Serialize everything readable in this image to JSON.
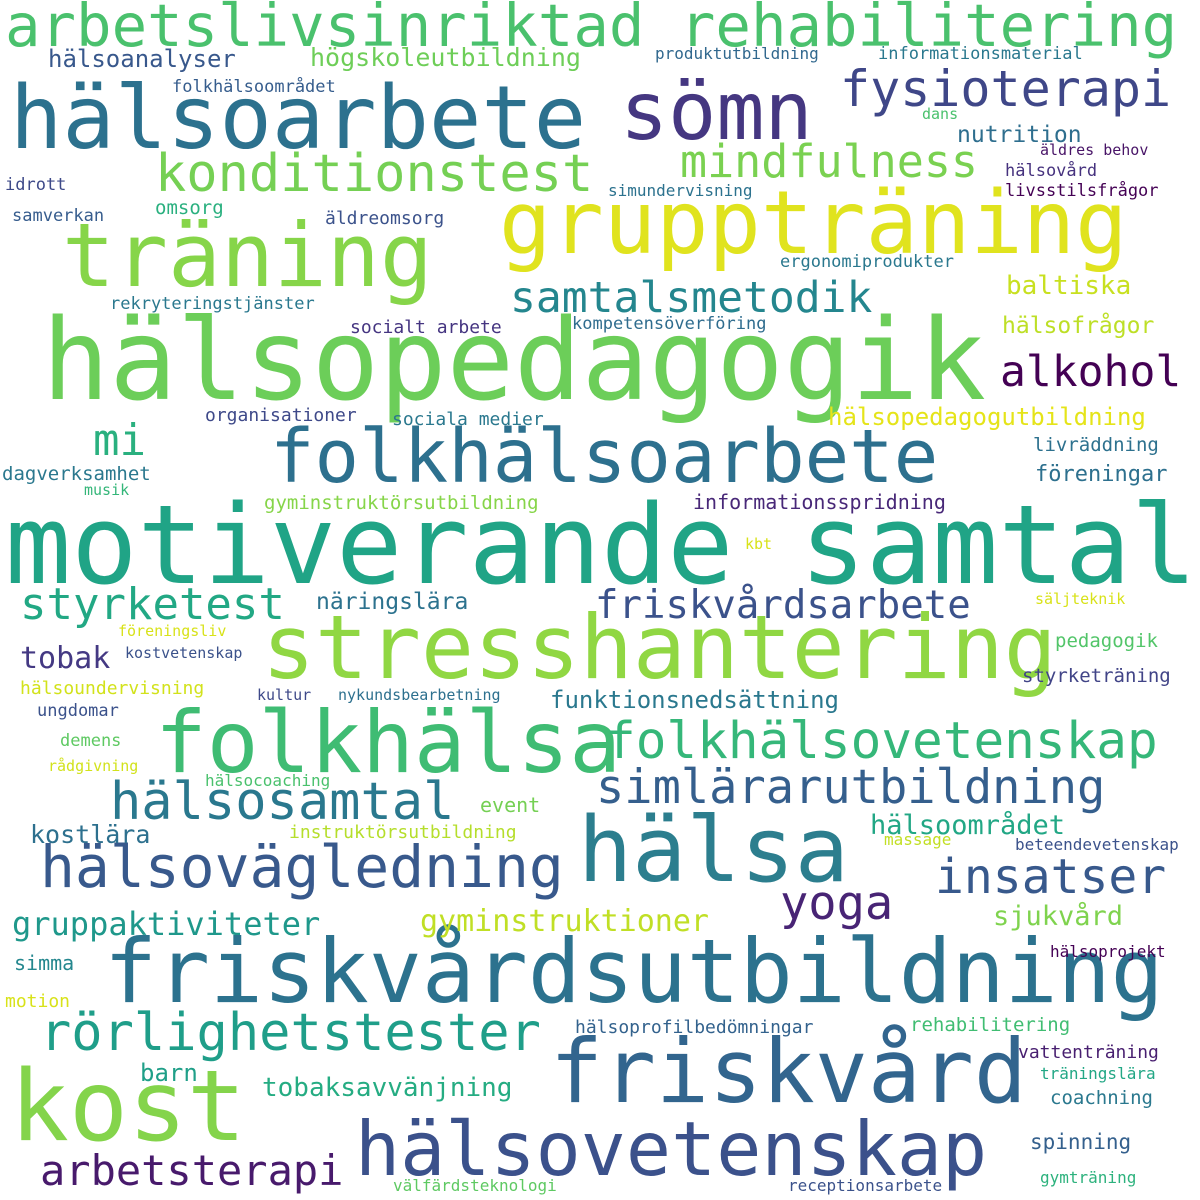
{
  "words": [
    {
      "text": "motiverande samtal",
      "color": "#20a486"
    },
    {
      "text": "hälsopedagogik",
      "color": "#6cce59"
    },
    {
      "text": "friskvårdsutbildning",
      "color": "#2c728e"
    },
    {
      "text": "stresshantering",
      "color": "#90d743"
    },
    {
      "text": "gruppträning",
      "color": "#e0e31e"
    },
    {
      "text": "hälsoarbete",
      "color": "#2c718e"
    },
    {
      "text": "träning",
      "color": "#86d549"
    },
    {
      "text": "folkhälsoarbete",
      "color": "#2d708e"
    },
    {
      "text": "folkhälsa",
      "color": "#3fbc73"
    },
    {
      "text": "friskvård",
      "color": "#32658e"
    },
    {
      "text": "hälsa",
      "color": "#2c7e8e"
    },
    {
      "text": "kost",
      "color": "#84d44b"
    },
    {
      "text": "hälsovetenskap",
      "color": "#3b518b"
    },
    {
      "text": "sömn",
      "color": "#453781"
    },
    {
      "text": "arbetslivsinriktad rehabilitering",
      "color": "#4ac16d"
    },
    {
      "text": "hälsovägledning",
      "color": "#38598c"
    },
    {
      "text": "folkhälsovetenskap",
      "color": "#35b779"
    },
    {
      "text": "simlärarutbildning",
      "color": "#355f8d"
    },
    {
      "text": "rörlighetstester",
      "color": "#1f9e89"
    },
    {
      "text": "hälsosamtal",
      "color": "#2a788e"
    },
    {
      "text": "fysioterapi",
      "color": "#3f4788"
    },
    {
      "text": "konditionstest",
      "color": "#75d054"
    },
    {
      "text": "mindfulness",
      "color": "#7ad151"
    },
    {
      "text": "samtalsmetodik",
      "color": "#24868e"
    },
    {
      "text": "insatser",
      "color": "#38598c"
    },
    {
      "text": "friskvårdsarbete",
      "color": "#3b528b"
    },
    {
      "text": "styrketest",
      "color": "#22a884"
    },
    {
      "text": "arbetsterapi",
      "color": "#481a6c"
    },
    {
      "text": "alkohol",
      "color": "#440154"
    },
    {
      "text": "yoga",
      "color": "#482475"
    },
    {
      "text": "mi",
      "color": "#2ab07f"
    },
    {
      "text": "tobak",
      "color": "#443983"
    },
    {
      "text": "gruppaktiviteter",
      "color": "#1f988b"
    },
    {
      "text": "gyminstruktioner",
      "color": "#c0df25"
    },
    {
      "text": "hälsoområdet",
      "color": "#22a785"
    },
    {
      "text": "hälsopedagogutbildning",
      "color": "#e5e419"
    },
    {
      "text": "högskoleutbildning",
      "color": "#6ece58"
    },
    {
      "text": "tobaksavvänjning",
      "color": "#25ac82"
    },
    {
      "text": "baltiska",
      "color": "#c8e020"
    },
    {
      "text": "sjukvård",
      "color": "#7fd34e"
    },
    {
      "text": "hälsoanalyser",
      "color": "#38588c"
    },
    {
      "text": "nutrition",
      "color": "#2e6e8e"
    },
    {
      "text": "funktionsnedsättning",
      "color": "#2a788e"
    },
    {
      "text": "hälsofrågor",
      "color": "#bddf26"
    },
    {
      "text": "föreningar",
      "color": "#2d708e"
    },
    {
      "text": "informationsspridning",
      "color": "#482878"
    },
    {
      "text": "näringslära",
      "color": "#2c728e"
    },
    {
      "text": "kostlära",
      "color": "#2d708e"
    },
    {
      "text": "barn",
      "color": "#1f9f88"
    },
    {
      "text": "styrketräning",
      "color": "#414487"
    },
    {
      "text": "pedagogik",
      "color": "#52c569"
    },
    {
      "text": "rehabilitering",
      "color": "#40bd72"
    },
    {
      "text": "vattenträning",
      "color": "#481f70"
    },
    {
      "text": "coachning",
      "color": "#2a788e"
    },
    {
      "text": "spinning",
      "color": "#34608d"
    },
    {
      "text": "gyminstruktörsutbildning",
      "color": "#86d549"
    },
    {
      "text": "livräddning",
      "color": "#2d718e"
    },
    {
      "text": "hälsoprofilbedömningar",
      "color": "#33628d"
    },
    {
      "text": "simma",
      "color": "#24878e"
    },
    {
      "text": "event",
      "color": "#75d054"
    },
    {
      "text": "instruktörsutbildning",
      "color": "#b5de2b"
    },
    {
      "text": "hälsoundervisning",
      "color": "#d2e21b"
    },
    {
      "text": "dagverksamhet",
      "color": "#2a788e"
    },
    {
      "text": "sociala medier",
      "color": "#2a788e"
    },
    {
      "text": "socialt arbete",
      "color": "#453581"
    },
    {
      "text": "organisationer",
      "color": "#3e4989"
    },
    {
      "text": "kompetensöverföring",
      "color": "#2f6c8e"
    },
    {
      "text": "rekryteringstjänster",
      "color": "#2a788e"
    },
    {
      "text": "ergonomiprodukter",
      "color": "#2a788e"
    },
    {
      "text": "äldreomsorg",
      "color": "#3b528b"
    },
    {
      "text": "omsorg",
      "color": "#2ab07f"
    },
    {
      "text": "samverkan",
      "color": "#365c8d"
    },
    {
      "text": "idrott",
      "color": "#3e4a89"
    },
    {
      "text": "folkhälsoområdet",
      "color": "#365d8d"
    },
    {
      "text": "informationsmaterial",
      "color": "#2a788e"
    },
    {
      "text": "produktutbildning",
      "color": "#31688e"
    },
    {
      "text": "dans",
      "color": "#4ac16d"
    },
    {
      "text": "hälsovård",
      "color": "#46327e"
    },
    {
      "text": "äldres behov",
      "color": "#481467"
    },
    {
      "text": "livsstilsfrågor",
      "color": "#440154"
    },
    {
      "text": "simundervisning",
      "color": "#2c728e"
    },
    {
      "text": "musik",
      "color": "#34b679"
    },
    {
      "text": "kbt",
      "color": "#d8e219"
    },
    {
      "text": "säljteknik",
      "color": "#d8e219"
    },
    {
      "text": "föreningsliv",
      "color": "#d8e219"
    },
    {
      "text": "kostvetenskap",
      "color": "#3b528b"
    },
    {
      "text": "kultur",
      "color": "#3e4989"
    },
    {
      "text": "nykundsbearbetning",
      "color": "#2d708e"
    },
    {
      "text": "ungdomar",
      "color": "#3b528b"
    },
    {
      "text": "demens",
      "color": "#5ec962"
    },
    {
      "text": "rådgivning",
      "color": "#d2e21b"
    },
    {
      "text": "hälsocoaching",
      "color": "#4ac16d"
    },
    {
      "text": "massage",
      "color": "#c2df23"
    },
    {
      "text": "beteendevetenskap",
      "color": "#3b528b"
    },
    {
      "text": "hälsoprojekt",
      "color": "#440154"
    },
    {
      "text": "motion",
      "color": "#d8e219"
    },
    {
      "text": "träningslära",
      "color": "#22a785"
    },
    {
      "text": "välfärdsteknologi",
      "color": "#5ec962"
    },
    {
      "text": "receptionsarbete",
      "color": "#3b528b"
    },
    {
      "text": "gymträning",
      "color": "#2db27d"
    }
  ]
}
